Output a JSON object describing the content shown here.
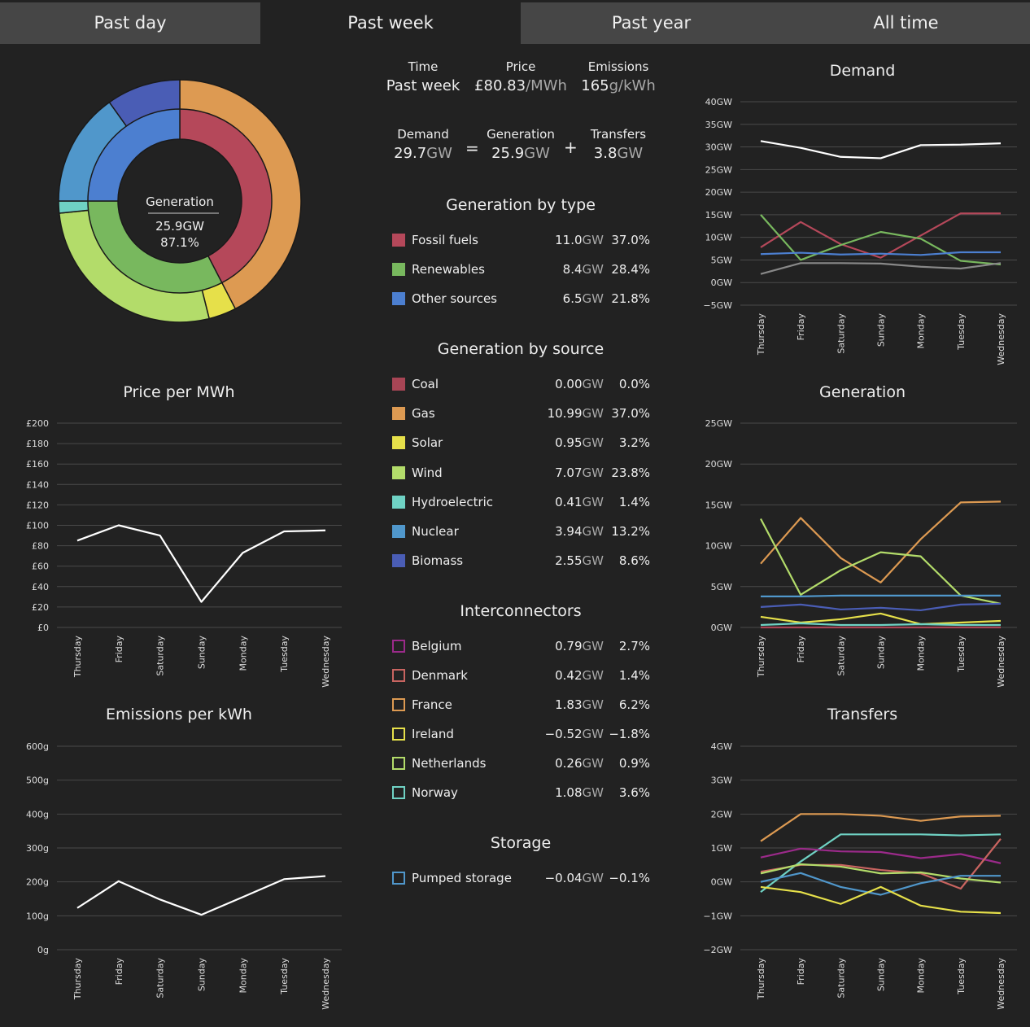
{
  "tabs": [
    {
      "label": "Past day",
      "active": false
    },
    {
      "label": "Past week",
      "active": true
    },
    {
      "label": "Past year",
      "active": false
    },
    {
      "label": "All time",
      "active": false
    }
  ],
  "summary": {
    "time_label": "Time",
    "time_value": "Past week",
    "price_label": "Price",
    "price_value": "£80.83",
    "price_unit": "/MWh",
    "emissions_label": "Emissions",
    "emissions_value": "165",
    "emissions_unit": "g/kWh",
    "demand_label": "Demand",
    "demand_value": "29.7",
    "demand_unit": "GW",
    "eq": "=",
    "generation_label": "Generation",
    "generation_value": "25.9",
    "generation_unit": "GW",
    "plus": "+",
    "transfers_label": "Transfers",
    "transfers_value": "3.8",
    "transfers_unit": "GW"
  },
  "donut": {
    "center_label": "Generation",
    "center_value": "25.9GW",
    "center_pct": "87.1%",
    "inner": [
      {
        "name": "Fossil fuels",
        "pct": 37.0,
        "color": "#b5485a"
      },
      {
        "name": "Renewables",
        "pct": 28.4,
        "color": "#78b85e"
      },
      {
        "name": "Other sources",
        "pct": 21.8,
        "color": "#4c7fd0"
      }
    ],
    "outer": [
      {
        "name": "Coal",
        "pct": 0.0,
        "color": "#a84555"
      },
      {
        "name": "Gas",
        "pct": 37.0,
        "color": "#dd9a52"
      },
      {
        "name": "Solar",
        "pct": 3.2,
        "color": "#e6e04a"
      },
      {
        "name": "Wind",
        "pct": 23.8,
        "color": "#b3dc6a"
      },
      {
        "name": "Hydroelectric",
        "pct": 1.4,
        "color": "#6fd2c4"
      },
      {
        "name": "Nuclear",
        "pct": 13.2,
        "color": "#5097cb"
      },
      {
        "name": "Biomass",
        "pct": 8.6,
        "color": "#4a5db5"
      }
    ]
  },
  "generation_by_type": {
    "title": "Generation by type",
    "rows": [
      {
        "name": "Fossil fuels",
        "gw": "11.0",
        "unit": "GW",
        "pct": "37.0%",
        "color": "#b5485a",
        "filled": true
      },
      {
        "name": "Renewables",
        "gw": "8.4",
        "unit": "GW",
        "pct": "28.4%",
        "color": "#78b85e",
        "filled": true
      },
      {
        "name": "Other sources",
        "gw": "6.5",
        "unit": "GW",
        "pct": "21.8%",
        "color": "#4c7fd0",
        "filled": true
      }
    ]
  },
  "generation_by_source": {
    "title": "Generation by source",
    "rows": [
      {
        "name": "Coal",
        "gw": "0.00",
        "unit": "GW",
        "pct": "0.0%",
        "color": "#a84555",
        "filled": true
      },
      {
        "name": "Gas",
        "gw": "10.99",
        "unit": "GW",
        "pct": "37.0%",
        "color": "#dd9a52",
        "filled": true
      },
      {
        "name": "Solar",
        "gw": "0.95",
        "unit": "GW",
        "pct": "3.2%",
        "color": "#e6e04a",
        "filled": true
      },
      {
        "name": "Wind",
        "gw": "7.07",
        "unit": "GW",
        "pct": "23.8%",
        "color": "#b3dc6a",
        "filled": true
      },
      {
        "name": "Hydroelectric",
        "gw": "0.41",
        "unit": "GW",
        "pct": "1.4%",
        "color": "#6fd2c4",
        "filled": true
      },
      {
        "name": "Nuclear",
        "gw": "3.94",
        "unit": "GW",
        "pct": "13.2%",
        "color": "#5097cb",
        "filled": true
      },
      {
        "name": "Biomass",
        "gw": "2.55",
        "unit": "GW",
        "pct": "8.6%",
        "color": "#4a5db5",
        "filled": true
      }
    ]
  },
  "interconnectors": {
    "title": "Interconnectors",
    "rows": [
      {
        "name": "Belgium",
        "gw": "0.79",
        "unit": "GW",
        "pct": "2.7%",
        "color": "#9b2a8a",
        "filled": false
      },
      {
        "name": "Denmark",
        "gw": "0.42",
        "unit": "GW",
        "pct": "1.4%",
        "color": "#c86460",
        "filled": false
      },
      {
        "name": "France",
        "gw": "1.83",
        "unit": "GW",
        "pct": "6.2%",
        "color": "#dd9a52",
        "filled": false
      },
      {
        "name": "Ireland",
        "gw": "−0.52",
        "unit": "GW",
        "pct": "−1.8%",
        "color": "#e6e04a",
        "filled": false
      },
      {
        "name": "Netherlands",
        "gw": "0.26",
        "unit": "GW",
        "pct": "0.9%",
        "color": "#b3dc6a",
        "filled": false
      },
      {
        "name": "Norway",
        "gw": "1.08",
        "unit": "GW",
        "pct": "3.6%",
        "color": "#6fd2c4",
        "filled": false
      }
    ]
  },
  "storage": {
    "title": "Storage",
    "rows": [
      {
        "name": "Pumped storage",
        "gw": "−0.04",
        "unit": "GW",
        "pct": "−0.1%",
        "color": "#5097cb",
        "filled": false
      }
    ]
  },
  "chart_data": [
    {
      "id": "price",
      "type": "line",
      "title": "Price per MWh",
      "categories": [
        "Thursday",
        "Friday",
        "Saturday",
        "Sunday",
        "Monday",
        "Tuesday",
        "Wednesday"
      ],
      "ylim": [
        0,
        200
      ],
      "yticks": [
        "£0",
        "£20",
        "£40",
        "£60",
        "£80",
        "£100",
        "£120",
        "£140",
        "£160",
        "£180",
        "£200"
      ],
      "series": [
        {
          "color": "#ffffff",
          "values": [
            85,
            100,
            90,
            25,
            73,
            94,
            95
          ]
        }
      ]
    },
    {
      "id": "emissions",
      "type": "line",
      "title": "Emissions per kWh",
      "categories": [
        "Thursday",
        "Friday",
        "Saturday",
        "Sunday",
        "Monday",
        "Tuesday",
        "Wednesday"
      ],
      "ylim": [
        0,
        600
      ],
      "yticks": [
        "0g",
        "100g",
        "200g",
        "300g",
        "400g",
        "500g",
        "600g"
      ],
      "series": [
        {
          "color": "#ffffff",
          "values": [
            123,
            202,
            148,
            103,
            155,
            208,
            217
          ]
        }
      ]
    },
    {
      "id": "demand",
      "type": "line",
      "title": "Demand",
      "categories": [
        "Thursday",
        "Friday",
        "Saturday",
        "Sunday",
        "Monday",
        "Tuesday",
        "Wednesday"
      ],
      "ylim": [
        -5,
        40
      ],
      "yticks": [
        "−5GW",
        "0GW",
        "5GW",
        "10GW",
        "15GW",
        "20GW",
        "25GW",
        "30GW",
        "35GW",
        "40GW"
      ],
      "series": [
        {
          "color": "#ffffff",
          "values": [
            31.3,
            29.8,
            27.8,
            27.5,
            30.4,
            30.5,
            30.8
          ]
        },
        {
          "color": "#b5485a",
          "values": [
            7.8,
            13.4,
            8.5,
            5.5,
            10.4,
            15.3,
            15.3
          ]
        },
        {
          "color": "#78b85e",
          "values": [
            15.0,
            5.0,
            8.3,
            11.2,
            9.7,
            4.8,
            4.0
          ]
        },
        {
          "color": "#4c7fd0",
          "values": [
            6.3,
            6.6,
            6.2,
            6.4,
            6.1,
            6.7,
            6.7
          ]
        },
        {
          "color": "#888888",
          "values": [
            1.9,
            4.3,
            4.3,
            4.2,
            3.5,
            3.1,
            4.3
          ]
        }
      ]
    },
    {
      "id": "generation",
      "type": "line",
      "title": "Generation",
      "categories": [
        "Thursday",
        "Friday",
        "Saturday",
        "Sunday",
        "Monday",
        "Tuesday",
        "Wednesday"
      ],
      "ylim": [
        0,
        25
      ],
      "yticks": [
        "0GW",
        "5GW",
        "10GW",
        "15GW",
        "20GW",
        "25GW"
      ],
      "series": [
        {
          "color": "#dd9a52",
          "values": [
            7.8,
            13.4,
            8.5,
            5.5,
            10.8,
            15.3,
            15.4
          ]
        },
        {
          "color": "#b3dc6a",
          "values": [
            13.3,
            4.0,
            7.0,
            9.2,
            8.7,
            3.9,
            2.9
          ]
        },
        {
          "color": "#5097cb",
          "values": [
            3.8,
            3.8,
            3.9,
            3.9,
            3.9,
            3.9,
            3.9
          ]
        },
        {
          "color": "#4a5db5",
          "values": [
            2.5,
            2.8,
            2.2,
            2.4,
            2.1,
            2.8,
            2.9
          ]
        },
        {
          "color": "#e6e04a",
          "values": [
            1.3,
            0.6,
            1.0,
            1.7,
            0.4,
            0.6,
            0.8
          ]
        },
        {
          "color": "#6fd2c4",
          "values": [
            0.3,
            0.5,
            0.3,
            0.3,
            0.4,
            0.3,
            0.3
          ]
        },
        {
          "color": "#a84555",
          "values": [
            0.0,
            0.0,
            0.0,
            0.0,
            0.0,
            0.0,
            0.0
          ]
        }
      ]
    },
    {
      "id": "transfers",
      "type": "line",
      "title": "Transfers",
      "categories": [
        "Thursday",
        "Friday",
        "Saturday",
        "Sunday",
        "Monday",
        "Tuesday",
        "Wednesday"
      ],
      "ylim": [
        -2,
        4
      ],
      "yticks": [
        "−2GW",
        "−1GW",
        "0GW",
        "1GW",
        "2GW",
        "3GW",
        "4GW"
      ],
      "series": [
        {
          "color": "#dd9a52",
          "values": [
            1.2,
            2.0,
            2.0,
            1.95,
            1.8,
            1.93,
            1.95
          ]
        },
        {
          "color": "#6fd2c4",
          "values": [
            -0.3,
            0.6,
            1.4,
            1.4,
            1.4,
            1.37,
            1.4
          ]
        },
        {
          "color": "#9b2a8a",
          "values": [
            0.72,
            0.98,
            0.9,
            0.88,
            0.7,
            0.82,
            0.55
          ]
        },
        {
          "color": "#c86460",
          "values": [
            0.3,
            0.5,
            0.5,
            0.35,
            0.25,
            -0.2,
            1.27
          ]
        },
        {
          "color": "#b3dc6a",
          "values": [
            0.25,
            0.52,
            0.45,
            0.25,
            0.28,
            0.1,
            -0.02
          ]
        },
        {
          "color": "#5097cb",
          "values": [
            0.0,
            0.26,
            -0.15,
            -0.38,
            -0.04,
            0.18,
            0.18
          ]
        },
        {
          "color": "#e6e04a",
          "values": [
            -0.15,
            -0.3,
            -0.65,
            -0.15,
            -0.7,
            -0.88,
            -0.92
          ]
        }
      ]
    }
  ]
}
